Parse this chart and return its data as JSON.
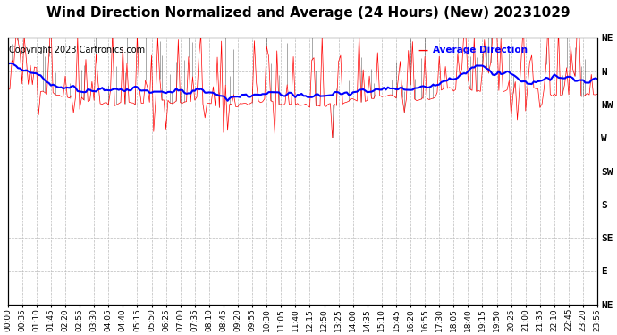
{
  "title": "Wind Direction Normalized and Average (24 Hours) (New) 20231029",
  "copyright": "Copyright 2023 Cartronics.com",
  "legend_label": "Average Direction",
  "legend_color_red": "#ff0000",
  "legend_color_blue": "#0000ff",
  "ylabel_right": [
    "NE",
    "N",
    "NW",
    "W",
    "SW",
    "S",
    "SE",
    "E",
    "NE"
  ],
  "ytick_values": [
    8,
    7,
    6,
    5,
    4,
    3,
    2,
    1,
    0
  ],
  "background_color": "#ffffff",
  "plot_bg_color": "#ffffff",
  "grid_color": "#bbbbbb",
  "red_line_color": "#ff0000",
  "blue_line_color": "#0000ff",
  "black_line_color": "#000000",
  "title_fontsize": 11,
  "axis_fontsize": 6.5,
  "copyright_fontsize": 7,
  "n_points": 288,
  "seed": 42,
  "x_tick_every": 7,
  "time_step_minutes": 5,
  "figwidth": 6.9,
  "figheight": 3.75,
  "dpi": 100
}
